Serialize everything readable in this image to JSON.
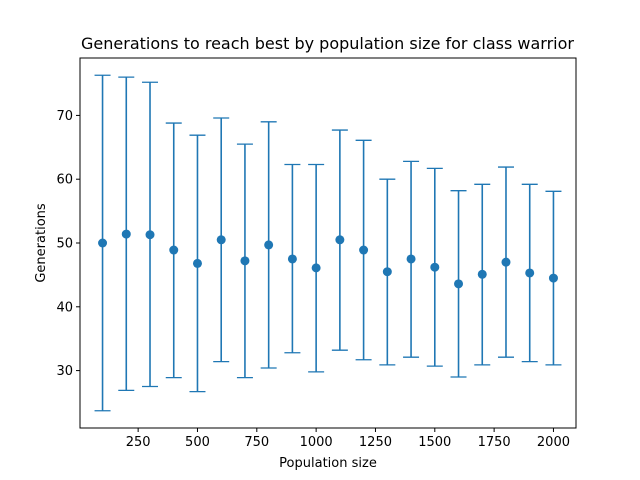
{
  "chart_data": {
    "type": "scatter",
    "title": "Generations to reach best by population size for class warrior",
    "xlabel": "Population size",
    "ylabel": "Generations",
    "xlim": [
      5,
      2095
    ],
    "ylim": [
      21,
      79
    ],
    "xticks": [
      250,
      500,
      750,
      1000,
      1250,
      1500,
      1750,
      2000
    ],
    "yticks": [
      30,
      40,
      50,
      60,
      70
    ],
    "grid": false,
    "legend": "none",
    "color": "#1f77b4",
    "points": [
      {
        "x": 100,
        "y": 50.0,
        "low": 23.7,
        "high": 76.3
      },
      {
        "x": 200,
        "y": 51.4,
        "low": 26.9,
        "high": 76.0
      },
      {
        "x": 300,
        "y": 51.3,
        "low": 27.5,
        "high": 75.2
      },
      {
        "x": 400,
        "y": 48.9,
        "low": 28.9,
        "high": 68.8
      },
      {
        "x": 500,
        "y": 46.8,
        "low": 26.7,
        "high": 66.9
      },
      {
        "x": 600,
        "y": 50.5,
        "low": 31.4,
        "high": 69.6
      },
      {
        "x": 700,
        "y": 47.2,
        "low": 28.9,
        "high": 65.5
      },
      {
        "x": 800,
        "y": 49.7,
        "low": 30.4,
        "high": 69.0
      },
      {
        "x": 900,
        "y": 47.5,
        "low": 32.8,
        "high": 62.3
      },
      {
        "x": 1000,
        "y": 46.1,
        "low": 29.8,
        "high": 62.3
      },
      {
        "x": 1100,
        "y": 50.5,
        "low": 33.2,
        "high": 67.7
      },
      {
        "x": 1200,
        "y": 48.9,
        "low": 31.7,
        "high": 66.1
      },
      {
        "x": 1300,
        "y": 45.5,
        "low": 30.9,
        "high": 60.0
      },
      {
        "x": 1400,
        "y": 47.5,
        "low": 32.1,
        "high": 62.8
      },
      {
        "x": 1500,
        "y": 46.2,
        "low": 30.7,
        "high": 61.7
      },
      {
        "x": 1600,
        "y": 43.6,
        "low": 29.0,
        "high": 58.2
      },
      {
        "x": 1700,
        "y": 45.1,
        "low": 30.9,
        "high": 59.2
      },
      {
        "x": 1800,
        "y": 47.0,
        "low": 32.1,
        "high": 61.9
      },
      {
        "x": 1900,
        "y": 45.3,
        "low": 31.4,
        "high": 59.2
      },
      {
        "x": 2000,
        "y": 44.5,
        "low": 30.9,
        "high": 58.1
      }
    ]
  }
}
